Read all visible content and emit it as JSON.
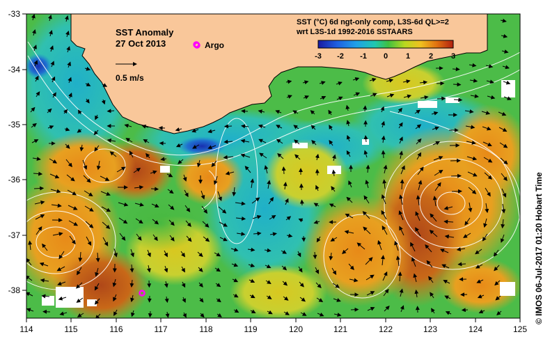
{
  "title_block": {
    "line1": "SST Anomaly",
    "line2": "27 Oct 2013"
  },
  "legend": {
    "argo_label": "Argo",
    "argo_color": "#ff00ff",
    "vector_scale_label": "0.5 m/s"
  },
  "colorbar": {
    "line1": "SST (°C) 6d ngt-only comp, L3S-6d QL>=2",
    "line2": "wrt L3S-1d 1992-2016 SSTAARS",
    "ticks": [
      "-3",
      "-2",
      "-1",
      "0",
      "1",
      "2",
      "3"
    ],
    "colors": [
      "#1a1aa0",
      "#1f5fe0",
      "#20a0e8",
      "#20c8b0",
      "#40c040",
      "#b8d820",
      "#f0c020",
      "#e07010",
      "#b02010"
    ]
  },
  "credit": "© IMOS 06-Jul-2017 01:20 Hobart Time",
  "land_color": "#f9c79a",
  "chart_data": {
    "type": "map",
    "x_ticks": [
      "114",
      "115",
      "116",
      "117",
      "118",
      "119",
      "120",
      "121",
      "122",
      "123",
      "124",
      "125"
    ],
    "y_ticks": [
      "-33",
      "-34",
      "-35",
      "-36",
      "-37",
      "-38"
    ],
    "xlim": [
      114,
      125
    ],
    "ylim": [
      -38.5,
      -33
    ],
    "argo_floats": [
      {
        "lon": 117.8,
        "lat": -33.6
      },
      {
        "lon": 116.55,
        "lat": -38.05
      }
    ],
    "eddy_centers": [
      {
        "lon": 114.8,
        "lat": -37.2
      },
      {
        "lon": 123.4,
        "lat": -36.5
      },
      {
        "lon": 115.5,
        "lat": -35.9
      },
      {
        "lon": 121.0,
        "lat": -37.5
      }
    ]
  }
}
